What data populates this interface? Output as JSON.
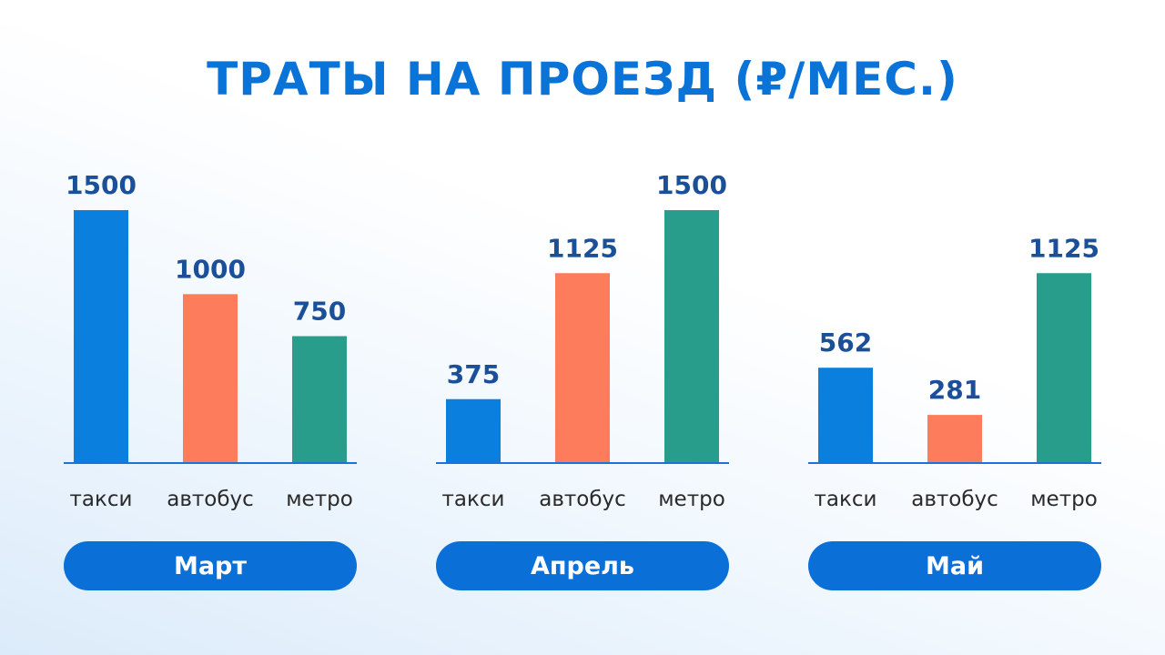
{
  "title": "ТРАТЫ НА ПРОЕЗД (₽/МЕС.)",
  "colors": {
    "такси": "#0a7fde",
    "автобус": "#fd7c5c",
    "метро": "#289d8c",
    "axis": "#1a73d9",
    "title": "#0a73d8",
    "pill": "#0b6fd8"
  },
  "chart_data": [
    {
      "type": "bar",
      "group_label": "Март",
      "categories": [
        "такси",
        "автобус",
        "метро"
      ],
      "values": [
        1500,
        1000,
        750
      ],
      "ylim": [
        0,
        1500
      ]
    },
    {
      "type": "bar",
      "group_label": "Апрель",
      "categories": [
        "такси",
        "автобус",
        "метро"
      ],
      "values": [
        375,
        1125,
        1500
      ],
      "ylim": [
        0,
        1500
      ]
    },
    {
      "type": "bar",
      "group_label": "Май",
      "categories": [
        "такси",
        "автобус",
        "метро"
      ],
      "values": [
        562,
        281,
        1125
      ],
      "ylim": [
        0,
        1500
      ]
    }
  ]
}
